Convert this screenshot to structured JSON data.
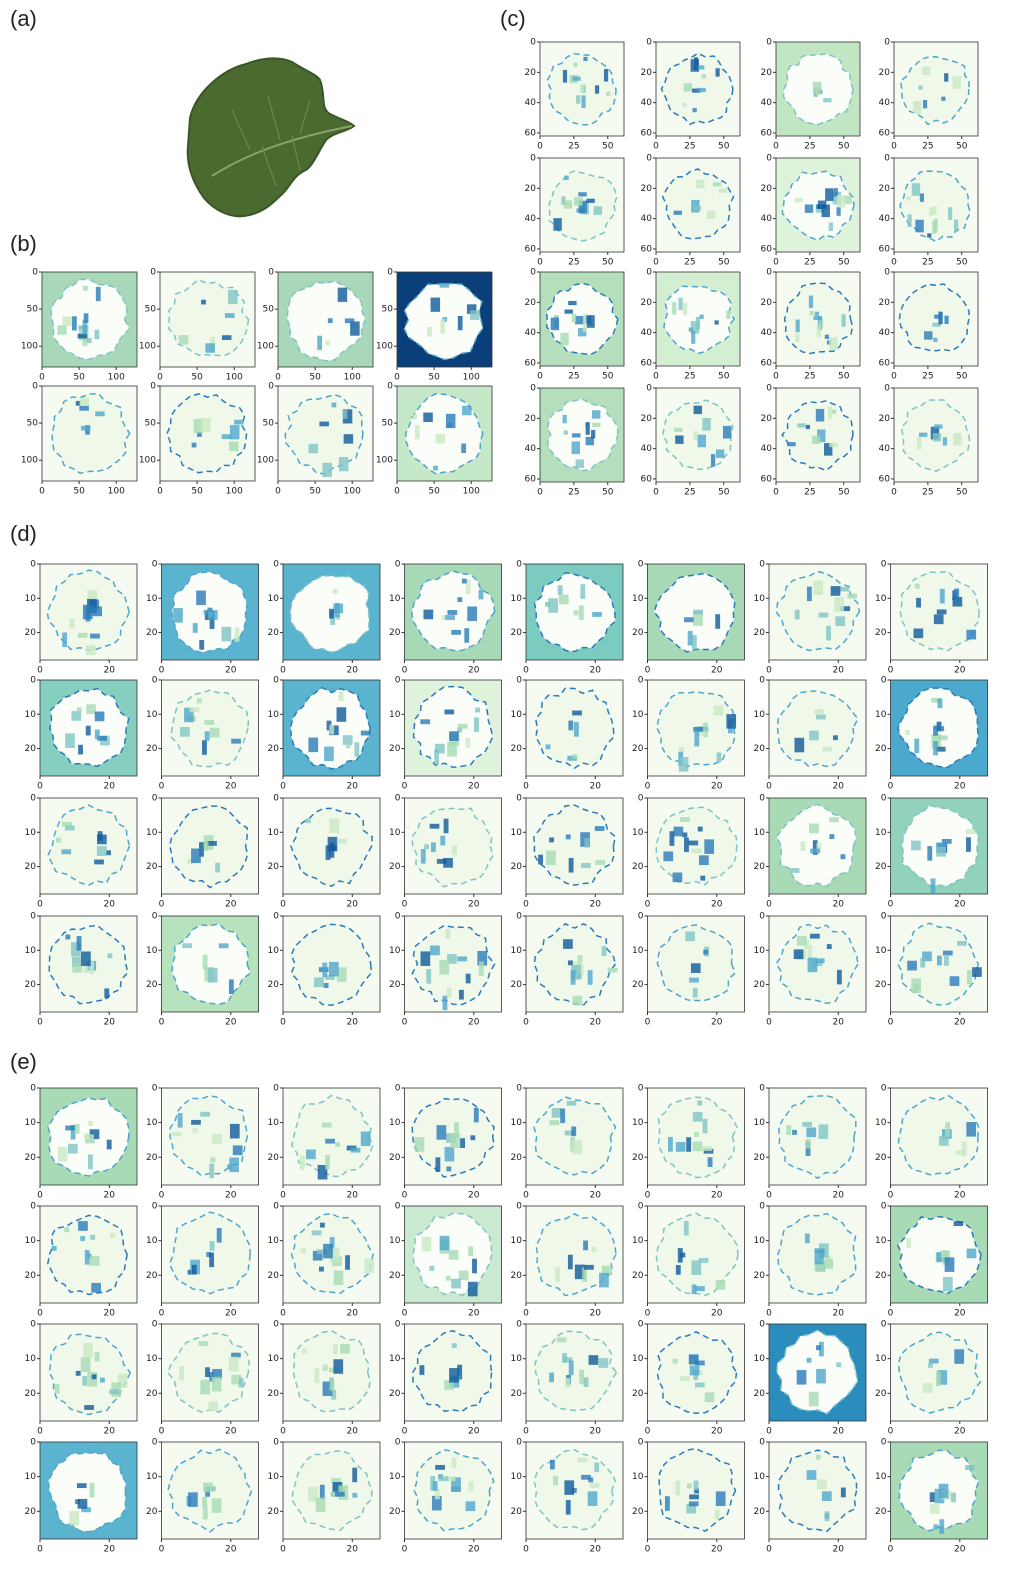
{
  "panels": [
    {
      "label": "(a)"
    },
    {
      "label": "(b)",
      "xticks": [
        0,
        50,
        100
      ],
      "yticks": [
        0,
        50,
        100
      ],
      "lim": [
        0,
        128
      ]
    },
    {
      "label": "(c)",
      "xticks": [
        0,
        25,
        50
      ],
      "yticks": [
        0,
        20,
        40,
        60
      ],
      "lim": [
        0,
        62
      ]
    },
    {
      "label": "(d)",
      "xticks": [
        0,
        20
      ],
      "yticks": [
        0,
        10,
        20
      ],
      "lim": [
        0,
        28
      ]
    },
    {
      "label": "(e)",
      "xticks": [
        0,
        20
      ],
      "yticks": [
        0,
        10,
        20
      ],
      "lim": [
        0,
        28
      ]
    }
  ]
}
